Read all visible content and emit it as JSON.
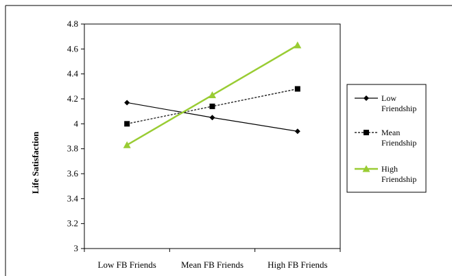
{
  "chart_data": {
    "type": "line",
    "title": "",
    "xlabel": "",
    "ylabel": "Life Satisfaction",
    "categories": [
      "Low FB Friends",
      "Mean FB Friends",
      "High FB Friends"
    ],
    "ylim": [
      3,
      4.8
    ],
    "yticks": [
      "4.8",
      "4.6",
      "4.4",
      "4.2",
      "4",
      "3.8",
      "3.6",
      "3.4",
      "3.2",
      "3"
    ],
    "grid": false,
    "legend_position": "right",
    "series": [
      {
        "name": "Low Friendship",
        "name_lines": [
          "Low",
          "Friendship"
        ],
        "values": [
          4.17,
          4.05,
          3.94
        ],
        "color": "#000000",
        "marker": "diamond",
        "dash": "solid"
      },
      {
        "name": "Mean Friendship",
        "name_lines": [
          "Mean",
          "Friendship"
        ],
        "values": [
          4.0,
          4.14,
          4.28
        ],
        "color": "#000000",
        "marker": "square",
        "dash": "dashed"
      },
      {
        "name": "High Friendship",
        "name_lines": [
          "High",
          "Friendship"
        ],
        "values": [
          3.83,
          4.23,
          4.63
        ],
        "color": "#99cc33",
        "marker": "triangle",
        "dash": "solid"
      }
    ]
  }
}
